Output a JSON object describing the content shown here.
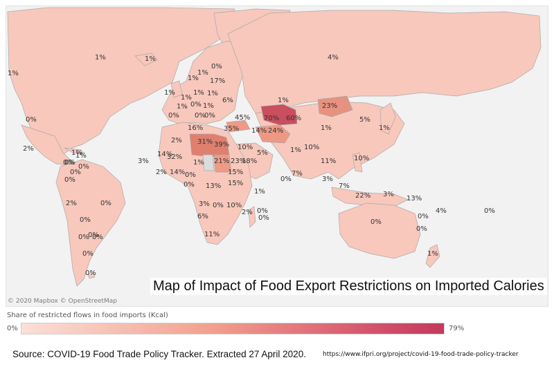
{
  "map": {
    "title": "Map of Impact of Food Export Restrictions on Imported Calories",
    "attribution": "© 2020 Mapbox © OpenStreetMap",
    "colors": {
      "light": "#f8c8bc",
      "mid": "#ef9a86",
      "strong": "#e07f6e",
      "dark": "#c94f5e",
      "no_data": "#dcdcdc",
      "ocean": "#f2f2f2"
    },
    "labels": [
      {
        "country": "Canada",
        "value": "1%"
      },
      {
        "country": "Alaska",
        "value": "1%"
      },
      {
        "country": "Greenland",
        "value": "1%"
      },
      {
        "country": "Iceland",
        "value": "1%"
      },
      {
        "country": "Russia",
        "value": "4%"
      },
      {
        "country": "USA",
        "value": "0%"
      },
      {
        "country": "Mexico",
        "value": "2%"
      },
      {
        "country": "Cuba",
        "value": "1%"
      },
      {
        "country": "Central America",
        "value": "0%"
      },
      {
        "country": "Caribbean",
        "value": "1%"
      },
      {
        "country": "Honduras",
        "value": "0%"
      },
      {
        "country": "Colombia",
        "value": "0%"
      },
      {
        "country": "Venezuela",
        "value": "0%"
      },
      {
        "country": "Ecuador",
        "value": "0%"
      },
      {
        "country": "Peru",
        "value": "2%"
      },
      {
        "country": "Brazil",
        "value": "0%"
      },
      {
        "country": "Bolivia",
        "value": "0%"
      },
      {
        "country": "Paraguay",
        "value": "0%"
      },
      {
        "country": "Chile",
        "value": "0%"
      },
      {
        "country": "Uruguay",
        "value": "0%"
      },
      {
        "country": "Argentina",
        "value": "0%"
      },
      {
        "country": "Falklands",
        "value": "0%"
      },
      {
        "country": "Norway",
        "value": "1%"
      },
      {
        "country": "Sweden",
        "value": "1%"
      },
      {
        "country": "Finland",
        "value": "0%"
      },
      {
        "country": "Baltics",
        "value": "17%"
      },
      {
        "country": "Belarus",
        "value": "1%"
      },
      {
        "country": "UK",
        "value": "1%"
      },
      {
        "country": "Germany",
        "value": "1%"
      },
      {
        "country": "Poland",
        "value": "1%"
      },
      {
        "country": "France",
        "value": "1%"
      },
      {
        "country": "Central Europe",
        "value": "0%"
      },
      {
        "country": "Ukraine",
        "value": "6%"
      },
      {
        "country": "Balkans",
        "value": "1%"
      },
      {
        "country": "Italy",
        "value": "0%"
      },
      {
        "country": "Spain",
        "value": "0%"
      },
      {
        "country": "Greece",
        "value": "0%"
      },
      {
        "country": "Georgia",
        "value": "45%"
      },
      {
        "country": "Turkey",
        "value": "35%"
      },
      {
        "country": "Kazakhstan",
        "value": "1%"
      },
      {
        "country": "Uzbekistan",
        "value": "70%"
      },
      {
        "country": "Kyrgyzstan",
        "value": "60%"
      },
      {
        "country": "Mongolia",
        "value": "23%"
      },
      {
        "country": "Iran",
        "value": "14%"
      },
      {
        "country": "Afghanistan",
        "value": "24%"
      },
      {
        "country": "China",
        "value": "1%"
      },
      {
        "country": "Korea",
        "value": "5%"
      },
      {
        "country": "Japan",
        "value": "1%"
      },
      {
        "country": "Morocco",
        "value": "2%"
      },
      {
        "country": "Algeria",
        "value": "16%"
      },
      {
        "country": "Libya",
        "value": "31%"
      },
      {
        "country": "Egypt",
        "value": "39%"
      },
      {
        "country": "Iraq",
        "value": "10%"
      },
      {
        "country": "Saudi Arabia",
        "value": "5%"
      },
      {
        "country": "India",
        "value": "1%"
      },
      {
        "country": "Nepal",
        "value": "10%"
      },
      {
        "country": "Mauritania",
        "value": "14%"
      },
      {
        "country": "Senegal",
        "value": "32%"
      },
      {
        "country": "Cape Verde",
        "value": "3%"
      },
      {
        "country": "Guinea",
        "value": "2%"
      },
      {
        "country": "Ivory Coast",
        "value": "14%"
      },
      {
        "country": "Ghana",
        "value": "0%"
      },
      {
        "country": "Chad",
        "value": "21%"
      },
      {
        "country": "Sudan",
        "value": "23%"
      },
      {
        "country": "Yemen",
        "value": "18%"
      },
      {
        "country": "Ethiopia",
        "value": "15%"
      },
      {
        "country": "Nigeria",
        "value": "1%"
      },
      {
        "country": "Gabon",
        "value": "0%"
      },
      {
        "country": "CAR",
        "value": "13%"
      },
      {
        "country": "Kenya",
        "value": "15%"
      },
      {
        "country": "Congo",
        "value": "3%"
      },
      {
        "country": "Tanzania",
        "value": "0%"
      },
      {
        "country": "DRC",
        "value": "10%"
      },
      {
        "country": "Angola",
        "value": "6%"
      },
      {
        "country": "Zimbabwe",
        "value": "0%"
      },
      {
        "country": "Madagascar",
        "value": "2%"
      },
      {
        "country": "Mauritius",
        "value": "0%"
      },
      {
        "country": "South Africa",
        "value": "11%"
      },
      {
        "country": "Sri Lanka",
        "value": "7%"
      },
      {
        "country": "Maldives",
        "value": "0%"
      },
      {
        "country": "Seychelles",
        "value": "1%"
      },
      {
        "country": "Myanmar",
        "value": "11%"
      },
      {
        "country": "Philippines",
        "value": "10%"
      },
      {
        "country": "Thailand",
        "value": "3%"
      },
      {
        "country": "Malaysia",
        "value": "7%"
      },
      {
        "country": "Indonesia",
        "value": "22%"
      },
      {
        "country": "Papua New Guinea",
        "value": "3%"
      },
      {
        "country": "Solomon Islands",
        "value": "13%"
      },
      {
        "country": "Vanuatu",
        "value": "0%"
      },
      {
        "country": "Fiji",
        "value": "4%"
      },
      {
        "country": "Samoa",
        "value": "0%"
      },
      {
        "country": "Australia",
        "value": "0%"
      },
      {
        "country": "New Caledonia",
        "value": "0%"
      },
      {
        "country": "New Zealand",
        "value": "1%"
      }
    ]
  },
  "legend": {
    "title": "Share of restricted flows in food imports (Kcal)",
    "min": "0%",
    "max": "79%"
  },
  "footer": {
    "source": "Source: COVID-19 Food Trade Policy Tracker. Extracted 27 April 2020.",
    "url": "https://www.ifpri.org/project/covid-19-food-trade-policy-tracker"
  }
}
